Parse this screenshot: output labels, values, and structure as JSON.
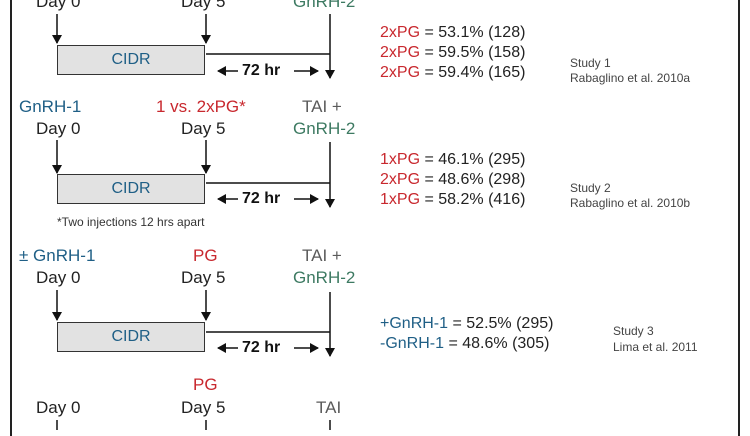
{
  "study1": {
    "day0": "Day 0",
    "day5": "Day 5",
    "gnrh2_top": "GnRH-2",
    "cidr": "CIDR",
    "hr72": "72 hr",
    "results": [
      {
        "label": "2xPG",
        "value": "= 53.1% (128)"
      },
      {
        "label": "2xPG",
        "value": "= 59.5% (158)"
      },
      {
        "label": "2xPG",
        "value": "= 59.4% (165)"
      }
    ],
    "study_name": "Study 1",
    "citation": "Rabaglino et al. 2010a"
  },
  "study2": {
    "gnrh1": "GnRH-1",
    "pg_label": "1 vs. 2xPG*",
    "tai_line1": "TAI +",
    "tai_line2": "GnRH-2",
    "day0": "Day 0",
    "day5": "Day 5",
    "cidr": "CIDR",
    "hr72": "72 hr",
    "note": "*Two injections 12 hrs apart",
    "results": [
      {
        "label": "1xPG",
        "value": "= 46.1% (295)"
      },
      {
        "label": "2xPG",
        "value": "= 48.6% (298)"
      },
      {
        "label": "1xPG",
        "value": "= 58.2% (416)"
      }
    ],
    "study_name": "Study 2",
    "citation": "Rabaglino et al. 2010b"
  },
  "study3": {
    "gnrh1": "± GnRH-1",
    "pg_label": "PG",
    "tai_line1": "TAI +",
    "tai_line2": "GnRH-2",
    "day0": "Day 0",
    "day5": "Day 5",
    "cidr": "CIDR",
    "hr72": "72 hr",
    "results": [
      {
        "label": "+GnRH-1",
        "value": "= 52.5% (295)"
      },
      {
        "label": "-GnRH-1",
        "value": "= 48.6% (305)"
      }
    ],
    "study_name": "Study 3",
    "citation": "Lima et al. 2011"
  },
  "study4": {
    "pg_label": "PG",
    "day0": "Day 0",
    "day5": "Day 5",
    "tai": "TAI"
  },
  "colors": {
    "blue": "#1f5f86",
    "red": "#c8282e",
    "green": "#3d7a62",
    "cidr_fill": "#e2e2e2"
  }
}
